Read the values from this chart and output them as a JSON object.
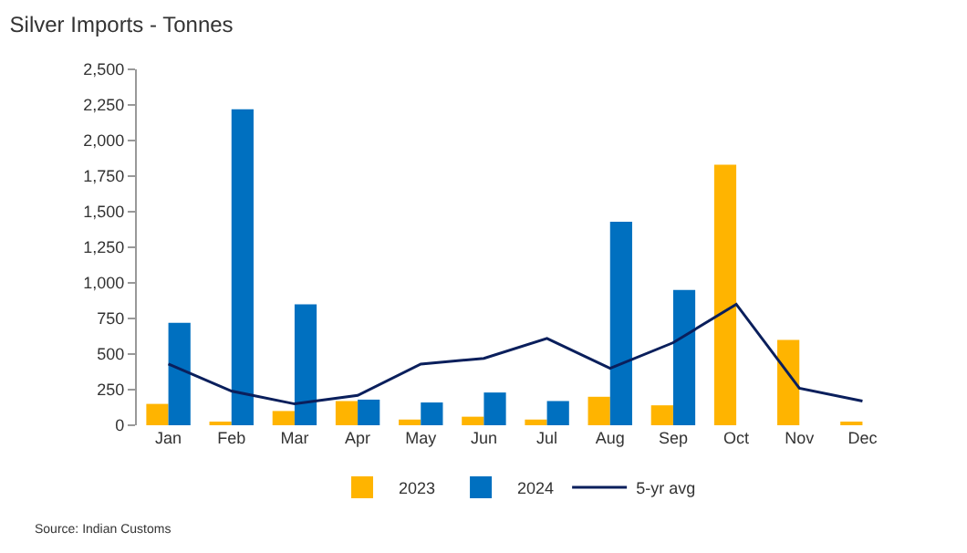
{
  "chart_data": {
    "type": "bar",
    "title": "Silver Imports - Tonnes",
    "categories": [
      "Jan",
      "Feb",
      "Mar",
      "Apr",
      "May",
      "Jun",
      "Jul",
      "Aug",
      "Sep",
      "Oct",
      "Nov",
      "Dec"
    ],
    "series": [
      {
        "name": "2023",
        "color": "#ffb400",
        "values": [
          150,
          20,
          100,
          170,
          40,
          60,
          40,
          200,
          140,
          1830,
          600,
          20
        ]
      },
      {
        "name": "2024",
        "color": "#0070c0",
        "values": [
          720,
          2220,
          850,
          180,
          160,
          230,
          170,
          1430,
          950,
          null,
          null,
          null
        ]
      },
      {
        "name": "5-yr avg",
        "type": "line",
        "color": "#0a1f5c",
        "values": [
          430,
          240,
          150,
          210,
          430,
          470,
          610,
          400,
          580,
          850,
          260,
          170
        ]
      }
    ],
    "ylim": [
      0,
      2500
    ],
    "yticks": [
      {
        "value": 0,
        "label": "0"
      },
      {
        "value": 250,
        "label": "250"
      },
      {
        "value": 500,
        "label": "500"
      },
      {
        "value": 750,
        "label": "750"
      },
      {
        "value": 1000,
        "label": "1,000"
      },
      {
        "value": 1250,
        "label": "1,250"
      },
      {
        "value": 1500,
        "label": "1,500"
      },
      {
        "value": 1750,
        "label": "1,750"
      },
      {
        "value": 2000,
        "label": "2,000"
      },
      {
        "value": 2250,
        "label": "2,250"
      },
      {
        "value": 2500,
        "label": "2,500"
      }
    ],
    "legend": "bottom",
    "annotations": [
      "Source: Indian Customs"
    ]
  }
}
